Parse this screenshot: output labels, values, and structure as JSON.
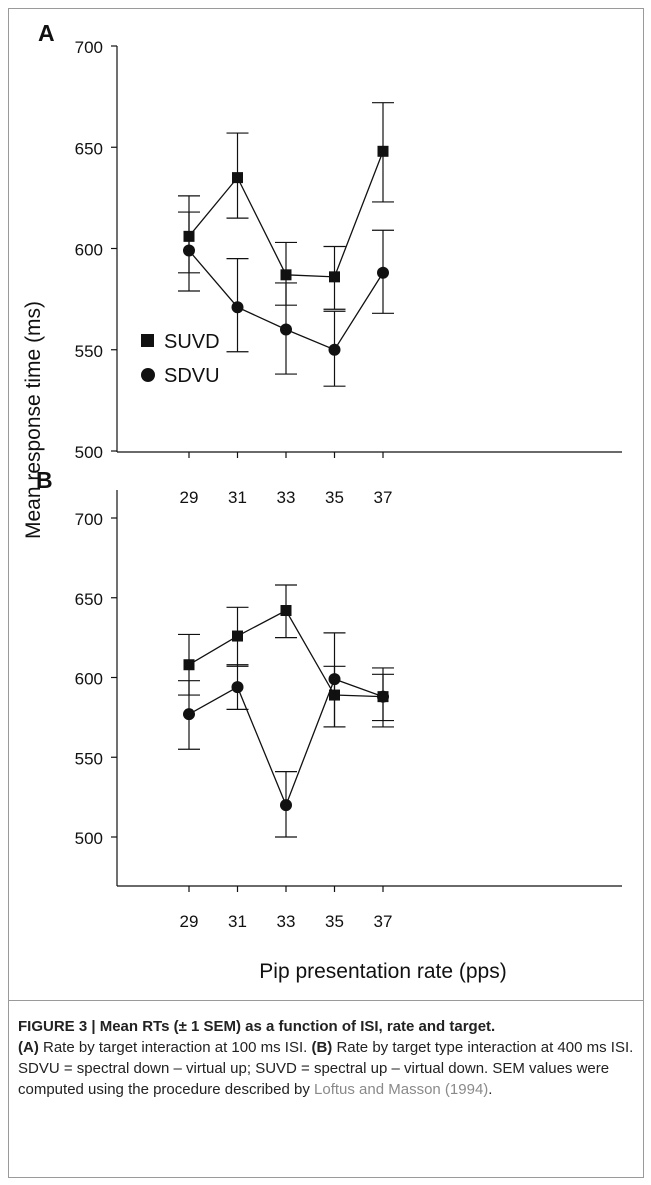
{
  "figure": {
    "ylabel": "Mean response time (ms)",
    "xlabel": "Pip presentation rate (pps)",
    "legend": [
      {
        "series": "SUVD",
        "marker": "square"
      },
      {
        "series": "SDVU",
        "marker": "circle"
      }
    ]
  },
  "chart_data": [
    {
      "type": "line",
      "panel_label": "A",
      "x": [
        29,
        31,
        33,
        35,
        37
      ],
      "xticks": [
        "29",
        "31",
        "33",
        "35",
        "37"
      ],
      "ylim": [
        500,
        700
      ],
      "yticks": [
        "500",
        "550",
        "600",
        "650",
        "700"
      ],
      "series": [
        {
          "name": "SUVD",
          "marker": "square",
          "color": "#111111",
          "values": [
            606,
            635,
            587,
            586,
            648
          ],
          "err_low": [
            588,
            615,
            572,
            570,
            623
          ],
          "err_high": [
            626,
            657,
            603,
            601,
            672
          ]
        },
        {
          "name": "SDVU",
          "marker": "circle",
          "color": "#111111",
          "values": [
            599,
            571,
            560,
            550,
            588
          ],
          "err_low": [
            579,
            549,
            538,
            532,
            568
          ],
          "err_high": [
            618,
            595,
            583,
            569,
            609
          ]
        }
      ]
    },
    {
      "type": "line",
      "panel_label": "B",
      "x": [
        29,
        31,
        33,
        35,
        37
      ],
      "xticks": [
        "29",
        "31",
        "33",
        "35",
        "37"
      ],
      "ylim": [
        500,
        700
      ],
      "yticks": [
        "500",
        "550",
        "600",
        "650",
        "700"
      ],
      "series": [
        {
          "name": "SUVD",
          "marker": "square",
          "color": "#111111",
          "values": [
            608,
            626,
            642,
            589,
            588
          ],
          "err_low": [
            589,
            607,
            625,
            569,
            573
          ],
          "err_high": [
            627,
            644,
            658,
            607,
            606
          ]
        },
        {
          "name": "SDVU",
          "marker": "circle",
          "color": "#111111",
          "values": [
            577,
            594,
            520,
            599,
            588
          ],
          "err_low": [
            555,
            580,
            500,
            569,
            569
          ],
          "err_high": [
            598,
            608,
            541,
            628,
            602
          ]
        }
      ]
    }
  ],
  "caption": {
    "title": "FIGURE 3 | Mean RTs (± 1 SEM) as a function of ISI, rate and target.",
    "a_label": "(A)",
    "a_text": " Rate by target interaction at 100 ms ISI. ",
    "b_label": "(B)",
    "b_text": " Rate by target type interaction at 400 ms ISI. SDVU = spectral down – virtual up; SUVD = spectral up – virtual down. SEM values were computed using the procedure described by ",
    "ref": "Loftus and Masson (1994)",
    "end": "."
  }
}
